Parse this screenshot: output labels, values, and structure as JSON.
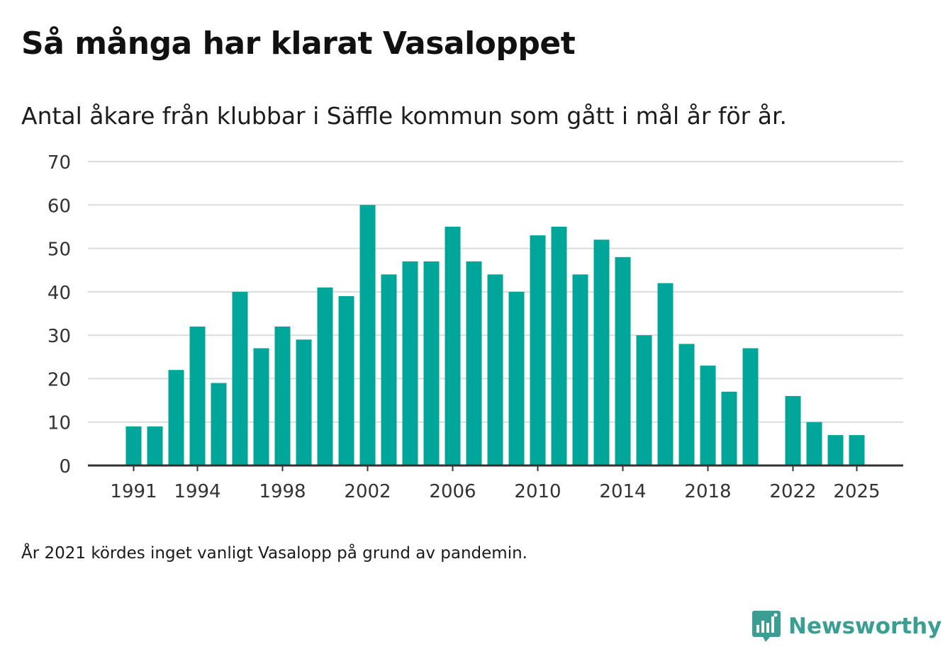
{
  "header": {
    "title": "Så många har klarat Vasaloppet",
    "subtitle": "Antal åkare från klubbar i Säffle kommun som gått i mål år för år."
  },
  "footer": {
    "note": "År 2021 kördes inget vanligt Vasalopp på grund av pandemin.",
    "brand": "Newsworthy"
  },
  "colors": {
    "bar": "#00a69a",
    "grid": "#dcdcdc",
    "axis": "#333333",
    "brand": "#3a9e93"
  },
  "chart_data": {
    "type": "bar",
    "title": "Så många har klarat Vasaloppet",
    "subtitle": "Antal åkare från klubbar i Säffle kommun som gått i mål år för år.",
    "xlabel": "",
    "ylabel": "",
    "ylim": [
      0,
      70
    ],
    "yticks": [
      0,
      10,
      20,
      30,
      40,
      50,
      60,
      70
    ],
    "xtick_labels": [
      "1991",
      "1994",
      "1998",
      "2002",
      "2006",
      "2010",
      "2014",
      "2018",
      "2022",
      "2025"
    ],
    "grid": true,
    "categories": [
      1989,
      1990,
      1991,
      1992,
      1993,
      1994,
      1995,
      1996,
      1997,
      1998,
      1999,
      2000,
      2001,
      2002,
      2003,
      2004,
      2005,
      2006,
      2007,
      2008,
      2009,
      2010,
      2011,
      2012,
      2013,
      2014,
      2015,
      2016,
      2017,
      2018,
      2019,
      2020,
      2021,
      2022,
      2023,
      2024,
      2025
    ],
    "values": [
      null,
      null,
      9,
      9,
      22,
      32,
      19,
      40,
      27,
      32,
      29,
      41,
      39,
      60,
      44,
      47,
      47,
      55,
      47,
      44,
      40,
      53,
      55,
      44,
      52,
      48,
      30,
      42,
      28,
      23,
      17,
      27,
      null,
      16,
      10,
      7,
      7
    ]
  }
}
